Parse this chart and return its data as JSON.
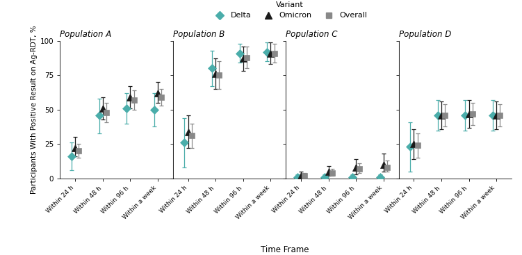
{
  "panels": [
    "Population A",
    "Population B",
    "Population C",
    "Population D"
  ],
  "timepoints": [
    "Within 24 h",
    "Within 48 h",
    "Within 96 h",
    "Within a week"
  ],
  "delta_color": "#4AADAA",
  "omicron_color": "#1a1a1a",
  "overall_color": "#888888",
  "delta": {
    "A": {
      "mean": [
        16,
        46,
        51,
        50
      ],
      "lo": [
        6,
        33,
        40,
        38
      ],
      "hi": [
        26,
        58,
        62,
        62
      ]
    },
    "B": {
      "mean": [
        26,
        80,
        91,
        92
      ],
      "lo": [
        8,
        67,
        84,
        85
      ],
      "hi": [
        44,
        93,
        98,
        99
      ]
    },
    "C": {
      "mean": [
        1,
        1,
        1,
        1
      ],
      "lo": [
        0,
        0,
        0,
        0
      ],
      "hi": [
        3,
        3,
        3,
        3
      ]
    },
    "D": {
      "mean": [
        23,
        46,
        46,
        46
      ],
      "lo": [
        5,
        35,
        35,
        35
      ],
      "hi": [
        41,
        57,
        57,
        57
      ]
    }
  },
  "omicron": {
    "A": {
      "mean": [
        22,
        51,
        59,
        62
      ],
      "lo": [
        16,
        43,
        51,
        55
      ],
      "hi": [
        30,
        59,
        67,
        70
      ]
    },
    "B": {
      "mean": [
        34,
        76,
        87,
        91
      ],
      "lo": [
        22,
        65,
        78,
        83
      ],
      "hi": [
        46,
        87,
        96,
        99
      ]
    },
    "C": {
      "mean": [
        2,
        5,
        8,
        10
      ],
      "lo": [
        0,
        2,
        3,
        5
      ],
      "hi": [
        5,
        9,
        14,
        18
      ]
    },
    "D": {
      "mean": [
        25,
        46,
        47,
        46
      ],
      "lo": [
        14,
        36,
        37,
        36
      ],
      "hi": [
        36,
        56,
        57,
        56
      ]
    }
  },
  "overall": {
    "A": {
      "mean": [
        20,
        48,
        57,
        59
      ],
      "lo": [
        15,
        41,
        50,
        53
      ],
      "hi": [
        25,
        55,
        64,
        65
      ]
    },
    "B": {
      "mean": [
        31,
        75,
        88,
        91
      ],
      "lo": [
        22,
        65,
        80,
        84
      ],
      "hi": [
        40,
        85,
        96,
        98
      ]
    },
    "C": {
      "mean": [
        2,
        4,
        7,
        8
      ],
      "lo": [
        0,
        2,
        4,
        5
      ],
      "hi": [
        4,
        7,
        11,
        13
      ]
    },
    "D": {
      "mean": [
        24,
        46,
        47,
        46
      ],
      "lo": [
        15,
        38,
        39,
        38
      ],
      "hi": [
        33,
        54,
        55,
        54
      ]
    }
  },
  "ylabel": "Participants With Positive Result on Ag-RDT, %",
  "xlabel": "Time Frame",
  "ylim": [
    0,
    100
  ],
  "yticks": [
    0,
    25,
    50,
    75,
    100
  ]
}
